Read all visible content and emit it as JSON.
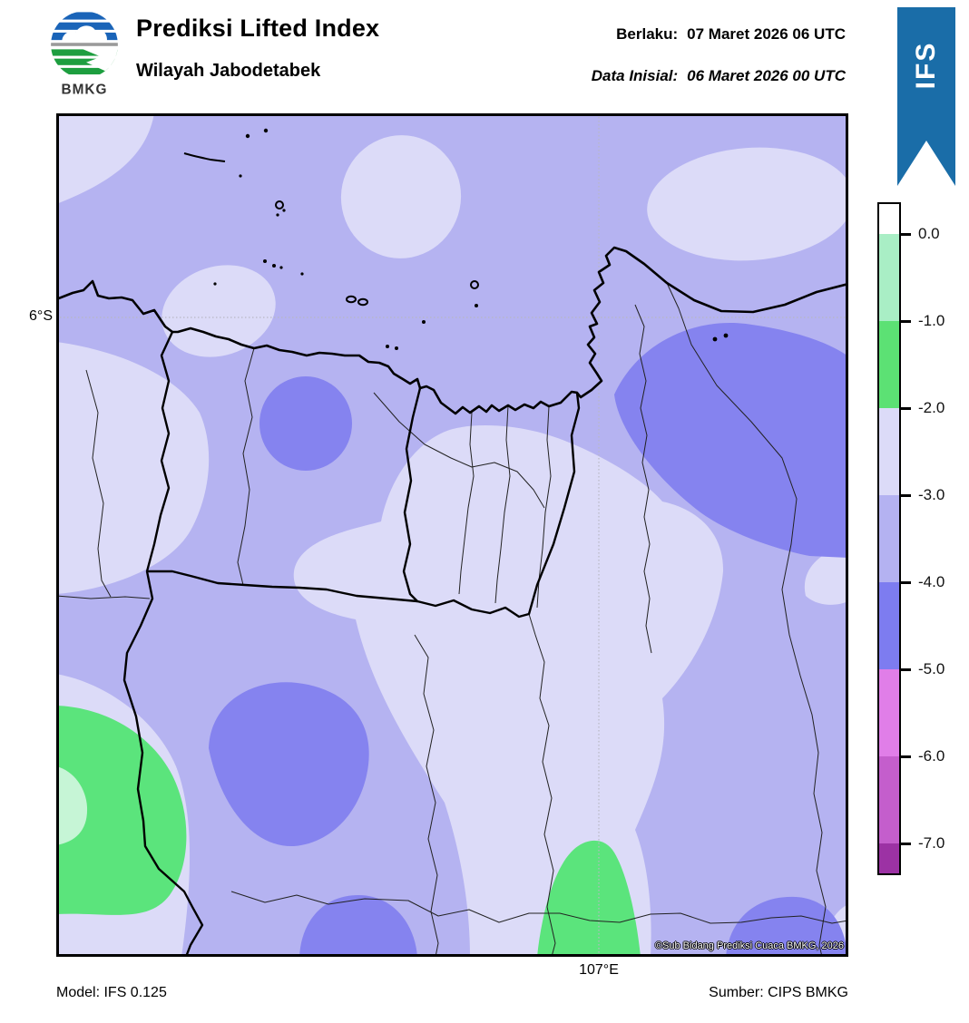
{
  "header": {
    "logo_text": "BMKG",
    "title": "Prediksi Lifted Index",
    "subtitle": "Wilayah Jabodetabek",
    "berlaku_label": "Berlaku:",
    "berlaku_value": "07 Maret 2026 06 UTC",
    "inisial_label": "Data Inisial:",
    "inisial_value": "06 Maret 2026 00 UTC",
    "ribbon_label": "IFS"
  },
  "map": {
    "lat_tick": "6°S",
    "lon_tick": "107°E",
    "copyright": "©Sub Bidang Prediksi Cuaca BMKG, 2026"
  },
  "colorbar": {
    "tick_labels": [
      "0.0",
      "-1.0",
      "-2.0",
      "-3.0",
      "-4.0",
      "-5.0",
      "-6.0",
      "-7.0"
    ],
    "segment_colors": [
      "#ffffff",
      "#a9eec5",
      "#5ce174",
      "#dcdbf8",
      "#b4b2f1",
      "#7d7cf0",
      "#e07ee8",
      "#c45ecc",
      "#9c32a4"
    ]
  },
  "footer": {
    "model": "Model: IFS 0.125",
    "source": "Sumber: CIPS BMKG"
  },
  "palette": {
    "map_base": "#b5b3f1",
    "map_light": "#dcdbf8",
    "map_blue": "#8583ef",
    "map_green": "#5be47c",
    "map_green_pale": "#c6f5d6",
    "ribbon_blue": "#1a6da8",
    "logo_blue": "#1a64b8",
    "logo_green": "#1d9e3f"
  }
}
